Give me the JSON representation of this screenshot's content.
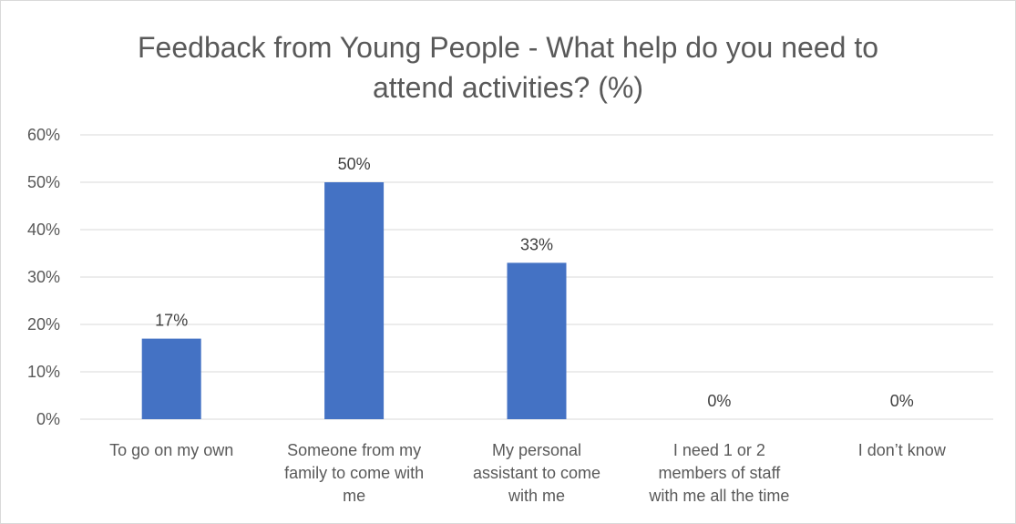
{
  "chart_data": {
    "type": "bar",
    "title_lines": [
      "Feedback from Young People - What help do you need to",
      "attend activities? (%)"
    ],
    "categories": [
      [
        "To go on my own"
      ],
      [
        "Someone from my",
        "family to come with",
        "me"
      ],
      [
        "My personal",
        "assistant to come",
        "with me"
      ],
      [
        "I need 1 or 2",
        "members of staff",
        "with me all the time"
      ],
      [
        "I don’t know"
      ]
    ],
    "values": [
      17,
      50,
      33,
      0,
      0
    ],
    "data_labels": [
      "17%",
      "50%",
      "33%",
      "0%",
      "0%"
    ],
    "y_ticks": [
      0,
      10,
      20,
      30,
      40,
      50,
      60
    ],
    "y_tick_labels": [
      "0%",
      "10%",
      "20%",
      "30%",
      "40%",
      "50%",
      "60%"
    ],
    "ylim": [
      0,
      60
    ],
    "grid": true,
    "legend": "none",
    "colors": {
      "bar": "#4472c4",
      "grid": "#d9d9d9"
    }
  }
}
